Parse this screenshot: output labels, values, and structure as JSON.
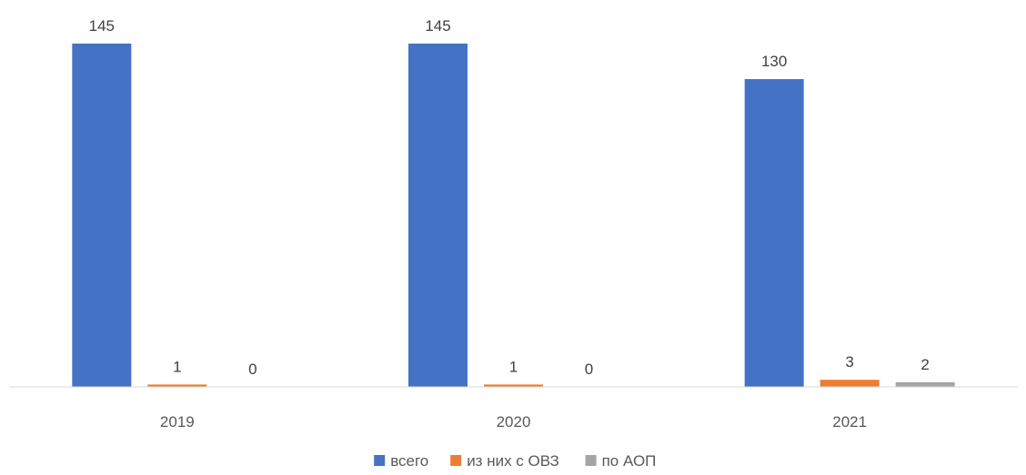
{
  "chart_data": {
    "type": "bar",
    "categories": [
      "2019",
      "2020",
      "2021"
    ],
    "series": [
      {
        "name": "всего",
        "values": [
          145,
          145,
          130
        ],
        "color": "#4472C4"
      },
      {
        "name": "из них с ОВЗ",
        "values": [
          1,
          1,
          3
        ],
        "color": "#ED7D31"
      },
      {
        "name": "по АОП",
        "values": [
          0,
          0,
          2
        ],
        "color": "#A5A5A5"
      }
    ],
    "ylim": [
      0,
      145
    ],
    "grid": false,
    "legend_position": "bottom",
    "data_labels": true
  }
}
